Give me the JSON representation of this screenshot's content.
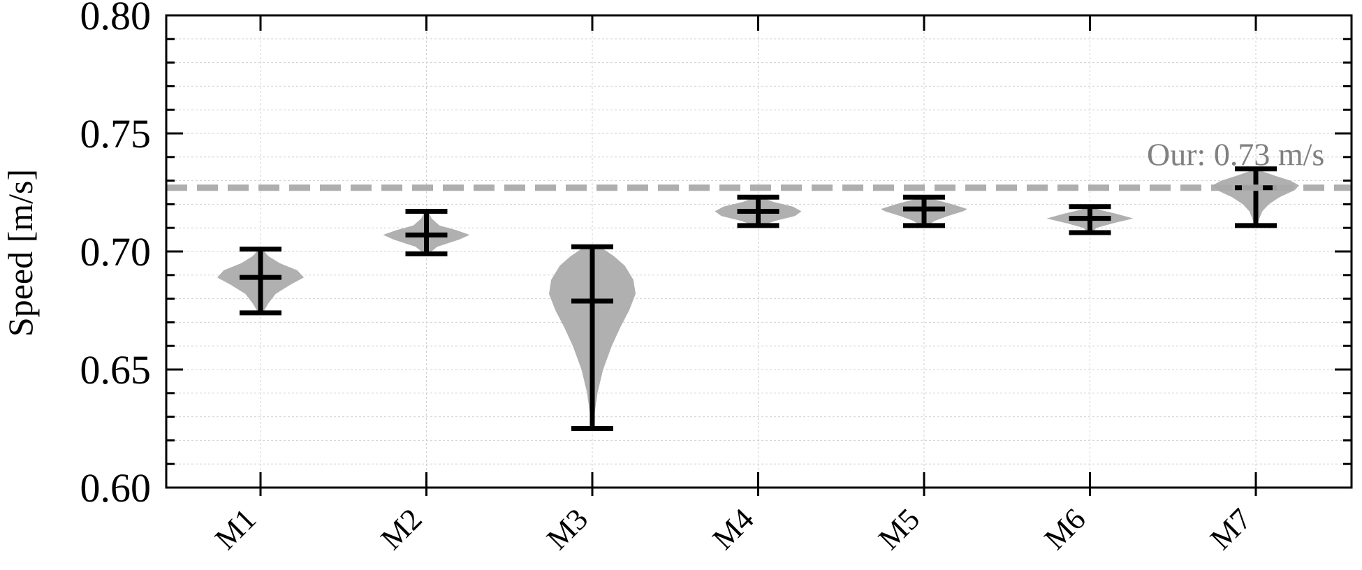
{
  "chart_data": {
    "type": "violin",
    "ylabel": "Speed [m/s]",
    "xlabel": "",
    "categories": [
      "M1",
      "M2",
      "M3",
      "M4",
      "M5",
      "M6",
      "M7"
    ],
    "ylim": [
      0.6,
      0.8
    ],
    "yticks": [
      "0.60",
      "0.65",
      "0.70",
      "0.75",
      "0.80"
    ],
    "grid": true,
    "violins": [
      {
        "name": "M1",
        "min": 0.674,
        "max": 0.701,
        "median": 0.689,
        "density": [
          [
            0.674,
            0.05
          ],
          [
            0.678,
            0.18
          ],
          [
            0.682,
            0.35
          ],
          [
            0.686,
            0.7
          ],
          [
            0.689,
            1.0
          ],
          [
            0.692,
            0.85
          ],
          [
            0.695,
            0.45
          ],
          [
            0.698,
            0.18
          ],
          [
            0.701,
            0.04
          ]
        ]
      },
      {
        "name": "M2",
        "min": 0.699,
        "max": 0.717,
        "median": 0.707,
        "density": [
          [
            0.699,
            0.05
          ],
          [
            0.702,
            0.25
          ],
          [
            0.705,
            0.75
          ],
          [
            0.707,
            1.0
          ],
          [
            0.709,
            0.7
          ],
          [
            0.711,
            0.3
          ],
          [
            0.714,
            0.12
          ],
          [
            0.717,
            0.04
          ]
        ]
      },
      {
        "name": "M3",
        "min": 0.625,
        "max": 0.702,
        "median": 0.679,
        "density": [
          [
            0.625,
            0.02
          ],
          [
            0.632,
            0.06
          ],
          [
            0.64,
            0.12
          ],
          [
            0.65,
            0.25
          ],
          [
            0.66,
            0.45
          ],
          [
            0.668,
            0.65
          ],
          [
            0.675,
            0.85
          ],
          [
            0.682,
            1.0
          ],
          [
            0.688,
            0.95
          ],
          [
            0.694,
            0.75
          ],
          [
            0.698,
            0.5
          ],
          [
            0.702,
            0.18
          ]
        ]
      },
      {
        "name": "M4",
        "min": 0.711,
        "max": 0.723,
        "median": 0.717,
        "density": [
          [
            0.711,
            0.1
          ],
          [
            0.713,
            0.4
          ],
          [
            0.715,
            0.85
          ],
          [
            0.717,
            1.0
          ],
          [
            0.719,
            0.8
          ],
          [
            0.721,
            0.35
          ],
          [
            0.723,
            0.08
          ]
        ]
      },
      {
        "name": "M5",
        "min": 0.711,
        "max": 0.723,
        "median": 0.718,
        "density": [
          [
            0.711,
            0.08
          ],
          [
            0.713,
            0.25
          ],
          [
            0.715,
            0.55
          ],
          [
            0.717,
            0.9
          ],
          [
            0.718,
            1.0
          ],
          [
            0.72,
            0.65
          ],
          [
            0.722,
            0.25
          ],
          [
            0.723,
            0.06
          ]
        ]
      },
      {
        "name": "M6",
        "min": 0.708,
        "max": 0.719,
        "median": 0.714,
        "density": [
          [
            0.708,
            0.05
          ],
          [
            0.71,
            0.15
          ],
          [
            0.712,
            0.55
          ],
          [
            0.714,
            1.0
          ],
          [
            0.716,
            0.6
          ],
          [
            0.718,
            0.15
          ],
          [
            0.719,
            0.04
          ]
        ]
      },
      {
        "name": "M7",
        "min": 0.711,
        "max": 0.735,
        "median": 0.727,
        "density": [
          [
            0.711,
            0.03
          ],
          [
            0.714,
            0.08
          ],
          [
            0.717,
            0.15
          ],
          [
            0.72,
            0.3
          ],
          [
            0.723,
            0.55
          ],
          [
            0.726,
            0.9
          ],
          [
            0.728,
            1.0
          ],
          [
            0.73,
            0.8
          ],
          [
            0.732,
            0.45
          ],
          [
            0.734,
            0.15
          ],
          [
            0.735,
            0.05
          ]
        ]
      }
    ],
    "reference_line": {
      "value": 0.727,
      "label": "Our: 0.73 m/s",
      "style": "dashed"
    },
    "colors": {
      "violin_fill": "#b0b0b0",
      "reference_line": "#aaaaaa",
      "reference_text": "#808080",
      "whisker": "#000000",
      "grid": "#d0d0d0"
    }
  }
}
